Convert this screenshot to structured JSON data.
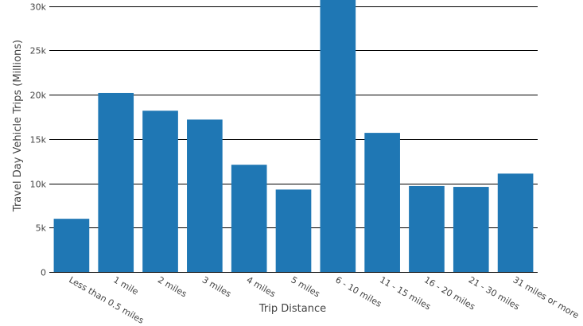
{
  "chart_data": {
    "type": "bar",
    "categories": [
      "Less than 0.5 miles",
      "1 mile",
      "2 miles",
      "3 miles",
      "4 miles",
      "5 miles",
      "6 - 10 miles",
      "11 - 15 miles",
      "16 - 20 miles",
      "21 - 30 miles",
      "31 miles or more"
    ],
    "values": [
      6000,
      20200,
      18200,
      17200,
      12100,
      9300,
      33000,
      15700,
      9700,
      9600,
      11100
    ],
    "xlabel": "Trip Distance",
    "ylabel": "Travel Day Vehicle Trips (Millions)",
    "ylim": [
      0,
      30700
    ],
    "yticks": [
      {
        "value": 0,
        "label": "0"
      },
      {
        "value": 5000,
        "label": "5k"
      },
      {
        "value": 10000,
        "label": "10k"
      },
      {
        "value": 15000,
        "label": "15k"
      },
      {
        "value": 20000,
        "label": "20k"
      },
      {
        "value": 25000,
        "label": "25k"
      },
      {
        "value": 30000,
        "label": "30k"
      }
    ],
    "grid": true,
    "bar_color": "#1f77b4"
  }
}
